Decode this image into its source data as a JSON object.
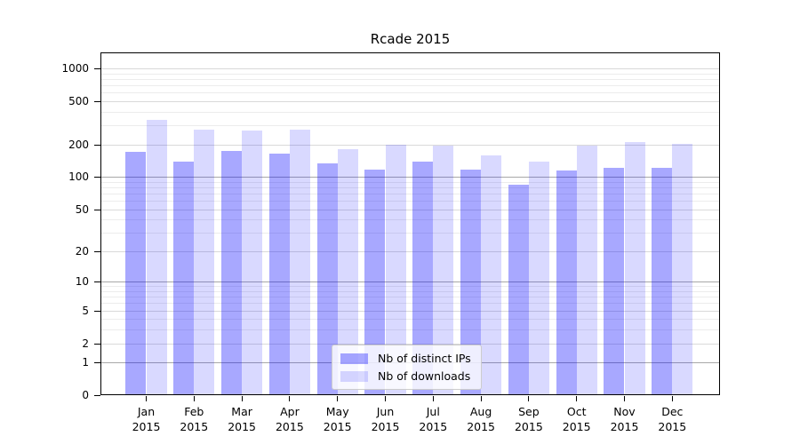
{
  "chart_data": {
    "type": "bar",
    "title": "Rcade 2015",
    "x_months": [
      "Jan",
      "Feb",
      "Mar",
      "Apr",
      "May",
      "Jun",
      "Jul",
      "Aug",
      "Sep",
      "Oct",
      "Nov",
      "Dec"
    ],
    "x_year": "2015",
    "series": [
      {
        "name": "Nb of distinct IPs",
        "color": "rgba(0,0,255,0.34)",
        "values": [
          170,
          139,
          174,
          166,
          133,
          117,
          139,
          117,
          85,
          115,
          121,
          121
        ]
      },
      {
        "name": "Nb of downloads",
        "color": "rgba(0,0,255,0.15)",
        "values": [
          339,
          272,
          267,
          272,
          180,
          198,
          194,
          158,
          139,
          195,
          210,
          201
        ]
      }
    ],
    "y_ticks": [
      0,
      1,
      2,
      5,
      10,
      20,
      50,
      100,
      200,
      500,
      1000
    ],
    "y_scale": "log1p",
    "ylim": [
      0,
      1408
    ],
    "grid": "on",
    "legend_position": "lower-center",
    "colors": {
      "major_grid": "#a8a8a8",
      "mid_grid": "#d9d9d9",
      "minor_grid": "#ececec",
      "spine": "#000000"
    }
  }
}
